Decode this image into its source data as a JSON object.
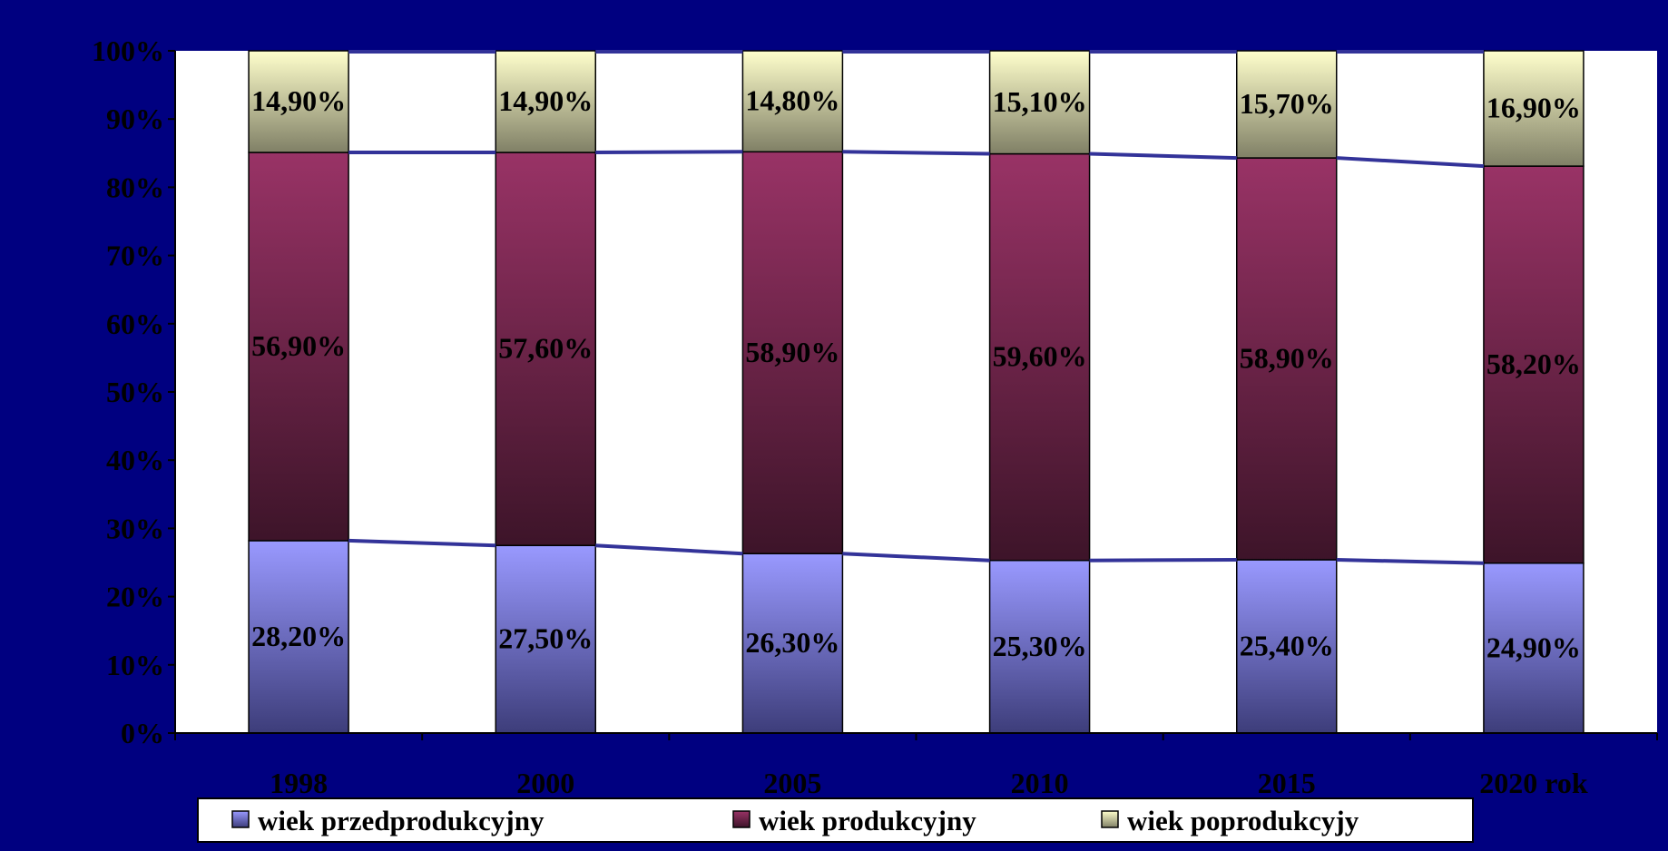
{
  "chart_data": {
    "type": "bar",
    "stacked": true,
    "percent_stacked": true,
    "categories": [
      "1998",
      "2000",
      "2005",
      "2010",
      "2015",
      "2020 rok"
    ],
    "series": [
      {
        "name": "wiek przedprodukcyjny",
        "values": [
          28.2,
          27.5,
          26.3,
          25.3,
          25.4,
          24.9
        ],
        "labels": [
          "28,20%",
          "27,50%",
          "26,30%",
          "25,30%",
          "25,40%",
          "24,90%"
        ],
        "color_top": "#9999ff",
        "color_bottom": "#3d3d7a"
      },
      {
        "name": "wiek produkcyjny",
        "values": [
          56.9,
          57.6,
          58.9,
          59.6,
          58.9,
          58.2
        ],
        "labels": [
          "56,90%",
          "57,60%",
          "58,90%",
          "59,60%",
          "58,90%",
          "58,20%"
        ],
        "color_top": "#993366",
        "color_bottom": "#3d1429"
      },
      {
        "name": "wiek poprodukcyjy",
        "values": [
          14.9,
          14.9,
          14.8,
          15.1,
          15.7,
          16.9
        ],
        "labels": [
          "14,90%",
          "14,90%",
          "14,80%",
          "15,10%",
          "15,70%",
          "16,90%"
        ],
        "color_top": "#ffffcc",
        "color_bottom": "#808066"
      }
    ],
    "y_ticks": [
      "0%",
      "10%",
      "20%",
      "30%",
      "40%",
      "50%",
      "60%",
      "70%",
      "80%",
      "90%",
      "100%"
    ],
    "ylim": [
      0,
      100
    ],
    "series_lines": true,
    "series_line_color": "#333399",
    "grid": false,
    "legend_position": "bottom",
    "plot_background": "#ffffff",
    "chart_background": "#000080"
  }
}
